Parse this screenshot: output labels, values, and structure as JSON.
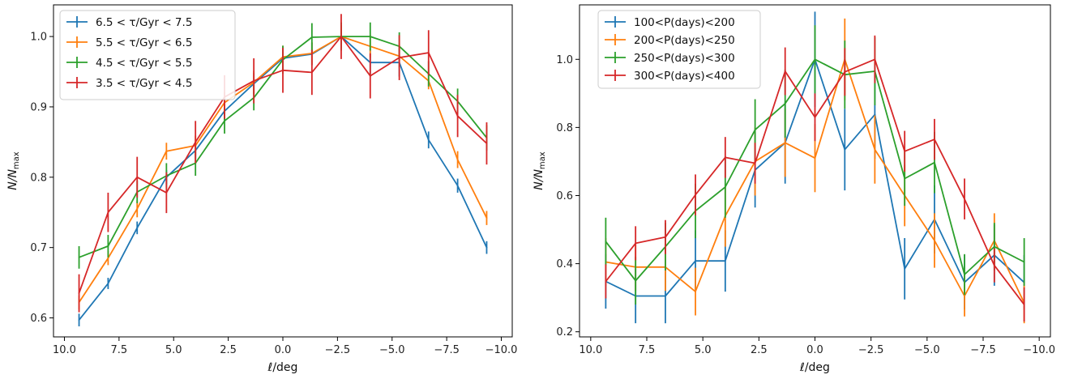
{
  "chart_data": [
    {
      "type": "line",
      "xlabel": "ℓ/deg",
      "ylabel": "N/N_max",
      "xlim": [
        10.5,
        -10.5
      ],
      "ylim": [
        0.573,
        1.045
      ],
      "x_ticks": [
        10.0,
        7.5,
        5.0,
        2.5,
        0.0,
        -2.5,
        -5.0,
        -7.5,
        -10.0
      ],
      "x_tick_labels": [
        "10.0",
        "7.5",
        "5.0",
        "2.5",
        "0.0",
        "−2.5",
        "−5.0",
        "−7.5",
        "−10.0"
      ],
      "y_ticks": [
        0.6,
        0.7,
        0.8,
        0.9,
        1.0
      ],
      "y_tick_labels": [
        "0.6",
        "0.7",
        "0.8",
        "0.9",
        "1.0"
      ],
      "legend_position": "top-left",
      "x": [
        9.33,
        8.0,
        6.67,
        5.33,
        4.0,
        2.67,
        1.33,
        0.0,
        -1.33,
        -2.67,
        -4.0,
        -5.33,
        -6.67,
        -8.0,
        -9.33
      ],
      "series": [
        {
          "name": "6.5 < τ/Gyr < 7.5",
          "color": "#1f77b4",
          "values": [
            0.597,
            0.649,
            0.728,
            0.8,
            0.838,
            0.894,
            0.933,
            0.969,
            0.975,
            1.0,
            0.963,
            0.963,
            0.853,
            0.788,
            0.7
          ],
          "errors": [
            0.009,
            0.008,
            0.009,
            0.01,
            0.012,
            0.013,
            0.015,
            0.016,
            0.016,
            0.016,
            0.02,
            0.02,
            0.012,
            0.01,
            0.009
          ]
        },
        {
          "name": "5.5 < τ/Gyr < 6.5",
          "color": "#ff7f0e",
          "values": [
            0.622,
            0.685,
            0.755,
            0.837,
            0.845,
            0.906,
            0.935,
            0.971,
            0.976,
            1.0,
            0.986,
            0.972,
            0.937,
            0.825,
            0.742
          ],
          "errors": [
            0.01,
            0.01,
            0.012,
            0.012,
            0.014,
            0.015,
            0.016,
            0.016,
            0.016,
            0.016,
            0.016,
            0.016,
            0.012,
            0.012,
            0.01
          ]
        },
        {
          "name": "4.5 < τ/Gyr < 5.5",
          "color": "#2ca02c",
          "values": [
            0.686,
            0.702,
            0.779,
            0.802,
            0.82,
            0.88,
            0.913,
            0.967,
            0.999,
            1.0,
            1.0,
            0.986,
            0.947,
            0.908,
            0.856
          ],
          "errors": [
            0.016,
            0.016,
            0.016,
            0.018,
            0.018,
            0.018,
            0.018,
            0.02,
            0.02,
            0.02,
            0.02,
            0.02,
            0.018,
            0.018,
            0.018
          ]
        },
        {
          "name": "3.5 < τ/Gyr < 4.5",
          "color": "#d62728",
          "values": [
            0.635,
            0.75,
            0.8,
            0.778,
            0.85,
            0.914,
            0.937,
            0.952,
            0.949,
            1.0,
            0.944,
            0.97,
            0.977,
            0.887,
            0.848
          ],
          "errors": [
            0.027,
            0.028,
            0.029,
            0.029,
            0.03,
            0.031,
            0.032,
            0.032,
            0.032,
            0.032,
            0.032,
            0.032,
            0.032,
            0.03,
            0.03
          ]
        }
      ]
    },
    {
      "type": "line",
      "xlabel": "ℓ/deg",
      "ylabel": "N/N_max",
      "xlim": [
        10.5,
        -10.5
      ],
      "ylim": [
        0.185,
        1.16
      ],
      "x_ticks": [
        10.0,
        7.5,
        5.0,
        2.5,
        0.0,
        -2.5,
        -5.0,
        -7.5,
        -10.0
      ],
      "x_tick_labels": [
        "10.0",
        "7.5",
        "5.0",
        "2.5",
        "0.0",
        "−2.5",
        "−5.0",
        "−7.5",
        "−10.0"
      ],
      "y_ticks": [
        0.2,
        0.4,
        0.6,
        0.8,
        1.0
      ],
      "y_tick_labels": [
        "0.2",
        "0.4",
        "0.6",
        "0.8",
        "1.0"
      ],
      "legend_position": "top-left",
      "x": [
        9.33,
        8.0,
        6.67,
        5.33,
        4.0,
        2.67,
        1.33,
        0.0,
        -1.33,
        -2.67,
        -4.0,
        -5.33,
        -6.67,
        -8.0,
        -9.33
      ],
      "series": [
        {
          "name": "100<P(days)<200",
          "color": "#1f77b4",
          "values": [
            0.348,
            0.305,
            0.305,
            0.408,
            0.408,
            0.675,
            0.755,
            1.0,
            0.735,
            0.838,
            0.385,
            0.53,
            0.345,
            0.425,
            0.345
          ],
          "errors": [
            0.08,
            0.08,
            0.08,
            0.09,
            0.09,
            0.11,
            0.12,
            0.14,
            0.12,
            0.13,
            0.09,
            0.1,
            0.08,
            0.09,
            0.08
          ]
        },
        {
          "name": "200<P(days)<250",
          "color": "#ff7f0e",
          "values": [
            0.405,
            0.39,
            0.39,
            0.318,
            0.54,
            0.7,
            0.755,
            0.71,
            1.0,
            0.735,
            0.6,
            0.468,
            0.305,
            0.468,
            0.285
          ],
          "errors": [
            0.07,
            0.07,
            0.07,
            0.07,
            0.09,
            0.1,
            0.1,
            0.1,
            0.12,
            0.1,
            0.09,
            0.08,
            0.06,
            0.08,
            0.06
          ]
        },
        {
          "name": "250<P(days)<300",
          "color": "#2ca02c",
          "values": [
            0.465,
            0.35,
            0.45,
            0.555,
            0.625,
            0.793,
            0.87,
            1.0,
            0.955,
            0.965,
            0.65,
            0.697,
            0.368,
            0.45,
            0.405
          ],
          "errors": [
            0.07,
            0.07,
            0.07,
            0.08,
            0.09,
            0.09,
            0.1,
            0.1,
            0.1,
            0.1,
            0.08,
            0.09,
            0.06,
            0.07,
            0.07
          ]
        },
        {
          "name": "300<P(days)<400",
          "color": "#d62728",
          "values": [
            0.348,
            0.46,
            0.478,
            0.602,
            0.712,
            0.695,
            0.965,
            0.83,
            0.963,
            1.0,
            0.73,
            0.765,
            0.59,
            0.395,
            0.28
          ],
          "errors": [
            0.05,
            0.05,
            0.05,
            0.06,
            0.06,
            0.06,
            0.07,
            0.07,
            0.07,
            0.07,
            0.06,
            0.06,
            0.06,
            0.05,
            0.05
          ]
        }
      ]
    }
  ]
}
